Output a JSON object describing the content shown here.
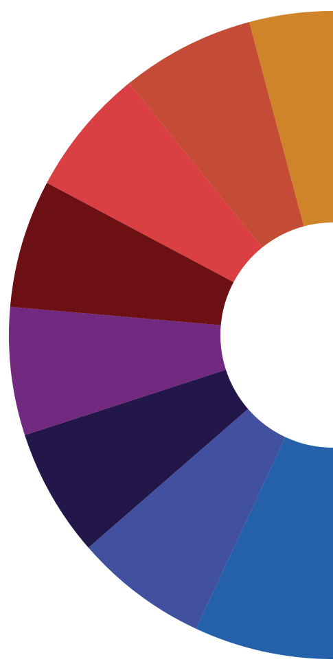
{
  "wheel": {
    "segments": [
      {
        "id": "orange",
        "color": "#D08429"
      },
      {
        "id": "brick",
        "color": "#C44C37"
      },
      {
        "id": "red",
        "color": "#DA3F44"
      },
      {
        "id": "maroon",
        "color": "#6C1014"
      },
      {
        "id": "purple",
        "color": "#722A80"
      },
      {
        "id": "deep-indigo",
        "color": "#23174A"
      },
      {
        "id": "indigo",
        "color": "#42519F"
      },
      {
        "id": "blue",
        "color": "#2561AB"
      }
    ],
    "background": "#FFFFFF"
  }
}
